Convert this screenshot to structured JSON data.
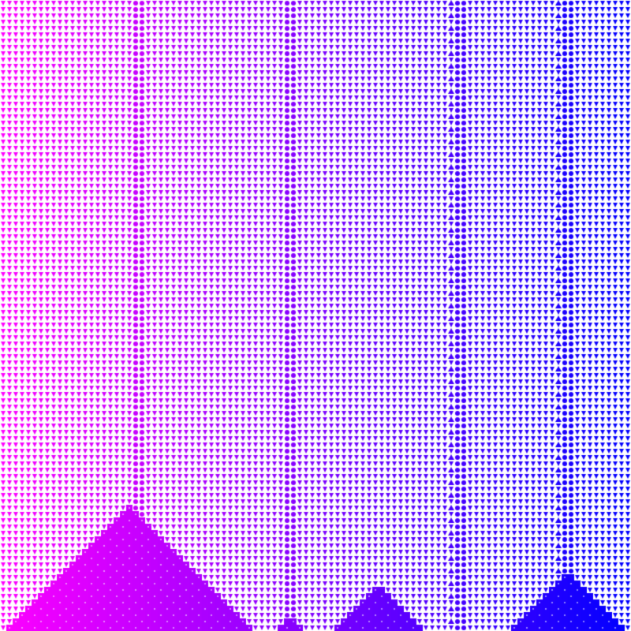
{
  "artwork": {
    "colors": {
      "left": "#ff00ff",
      "right": "#0000ff",
      "background": "#ffffff"
    },
    "glyph": "downward-triangle-pattern"
  }
}
